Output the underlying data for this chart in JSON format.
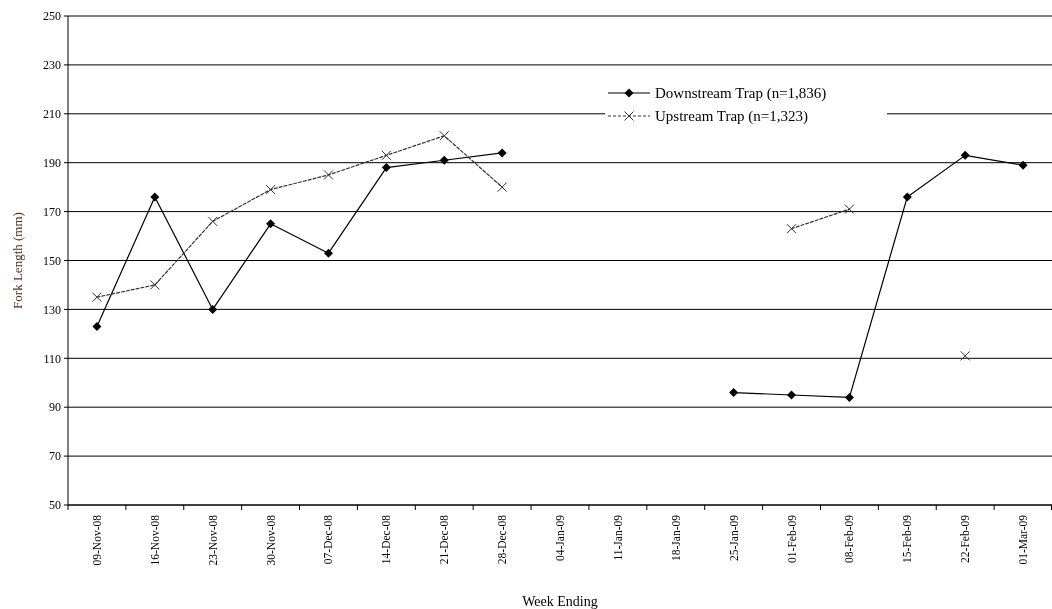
{
  "chart_data": {
    "type": "line",
    "xlabel": "Week Ending",
    "ylabel": "Fork Length (mm)",
    "categories": [
      "09-Nov-08",
      "16-Nov-08",
      "23-Nov-08",
      "30-Nov-08",
      "07-Dec-08",
      "14-Dec-08",
      "21-Dec-08",
      "28-Dec-08",
      "04-Jan-09",
      "11-Jan-09",
      "18-Jan-09",
      "25-Jan-09",
      "01-Feb-09",
      "08-Feb-09",
      "15-Feb-09",
      "22-Feb-09",
      "01-Mar-09"
    ],
    "series": [
      {
        "name": "Downstream Trap (n=1,836)",
        "color": "#000000",
        "marker": "diamond",
        "line_style": "solid",
        "values": [
          123,
          176,
          130,
          165,
          153,
          188,
          191,
          194,
          null,
          null,
          null,
          96,
          95,
          94,
          176,
          193,
          189
        ]
      },
      {
        "name": "Upstream Trap (n=1,323)",
        "color": "#333333",
        "marker": "cross",
        "line_style": "dashed",
        "values": [
          135,
          140,
          166,
          179,
          185,
          193,
          201,
          180,
          null,
          null,
          null,
          null,
          163,
          171,
          null,
          111,
          null
        ]
      }
    ],
    "ylim": [
      50,
      250
    ],
    "yticks": [
      50,
      70,
      90,
      110,
      130,
      150,
      170,
      190,
      210,
      230,
      250
    ],
    "grid": "y",
    "legend": "top right"
  }
}
